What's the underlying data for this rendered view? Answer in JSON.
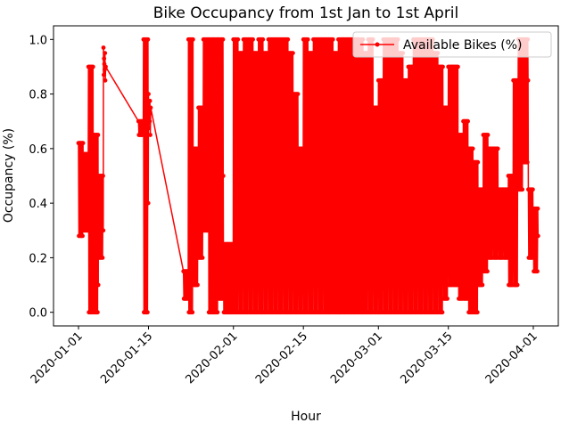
{
  "chart_data": {
    "type": "line",
    "title": "Bike Occupancy from 1st Jan to 1st April",
    "xlabel": "Hour",
    "ylabel": "Occupancy (%)",
    "xlim": [
      "2019-12-27",
      "2020-04-06"
    ],
    "ylim": [
      -0.05,
      1.05
    ],
    "x_ticks": [
      "2020-01-01",
      "2020-01-15",
      "2020-02-01",
      "2020-02-15",
      "2020-03-01",
      "2020-03-15",
      "2020-04-01"
    ],
    "y_ticks": [
      "0.0",
      "0.2",
      "0.4",
      "0.6",
      "0.8",
      "1.0"
    ],
    "grid": false,
    "legend_position": "top-right",
    "series": [
      {
        "name": "Available Bikes (%)",
        "color": "#ff0000",
        "marker": "circle",
        "x": [
          "2020-01-01",
          "2020-01-02",
          "2020-01-03",
          "2020-01-04",
          "2020-01-05",
          "2020-01-06",
          "2020-01-13",
          "2020-01-14",
          "2020-01-15",
          "2020-01-22",
          "2020-01-23",
          "2020-01-24",
          "2020-01-25",
          "2020-01-26",
          "2020-01-27",
          "2020-01-28",
          "2020-01-29",
          "2020-01-30",
          "2020-01-31",
          "2020-02-01",
          "2020-02-02",
          "2020-02-03",
          "2020-02-04",
          "2020-02-05",
          "2020-02-06",
          "2020-02-07",
          "2020-02-08",
          "2020-02-09",
          "2020-02-10",
          "2020-02-11",
          "2020-02-12",
          "2020-02-13",
          "2020-02-14",
          "2020-02-15",
          "2020-02-16",
          "2020-02-17",
          "2020-02-18",
          "2020-02-19",
          "2020-02-20",
          "2020-02-21",
          "2020-02-22",
          "2020-02-23",
          "2020-02-24",
          "2020-02-25",
          "2020-02-26",
          "2020-02-27",
          "2020-02-28",
          "2020-02-29",
          "2020-03-01",
          "2020-03-02",
          "2020-03-03",
          "2020-03-04",
          "2020-03-05",
          "2020-03-06",
          "2020-03-07",
          "2020-03-08",
          "2020-03-09",
          "2020-03-10",
          "2020-03-11",
          "2020-03-12",
          "2020-03-13",
          "2020-03-14",
          "2020-03-15",
          "2020-03-16",
          "2020-03-17",
          "2020-03-18",
          "2020-03-19",
          "2020-03-20",
          "2020-03-21",
          "2020-03-22",
          "2020-03-23",
          "2020-03-24",
          "2020-03-25",
          "2020-03-26",
          "2020-03-27",
          "2020-03-28",
          "2020-03-29",
          "2020-03-30",
          "2020-03-31",
          "2020-04-01"
        ],
        "min": [
          0.28,
          0.3,
          0.0,
          0.0,
          0.2,
          0.85,
          0.65,
          0.0,
          0.65,
          0.05,
          0.0,
          0.1,
          0.2,
          0.3,
          0.0,
          0.0,
          0.05,
          0.0,
          0.0,
          0.0,
          0.0,
          0.0,
          0.0,
          0.0,
          0.0,
          0.0,
          0.0,
          0.0,
          0.0,
          0.0,
          0.0,
          0.0,
          0.0,
          0.0,
          0.0,
          0.0,
          0.0,
          0.0,
          0.0,
          0.0,
          0.0,
          0.0,
          0.0,
          0.0,
          0.0,
          0.0,
          0.0,
          0.0,
          0.0,
          0.0,
          0.0,
          0.0,
          0.0,
          0.0,
          0.0,
          0.0,
          0.0,
          0.0,
          0.0,
          0.0,
          0.0,
          0.05,
          0.1,
          0.1,
          0.05,
          0.05,
          0.0,
          0.0,
          0.1,
          0.15,
          0.2,
          0.2,
          0.2,
          0.2,
          0.1,
          0.1,
          0.45,
          0.55,
          0.2,
          0.15
        ],
        "max": [
          0.62,
          0.58,
          0.9,
          0.65,
          0.5,
          0.97,
          0.7,
          1.0,
          0.8,
          0.15,
          1.0,
          0.6,
          0.75,
          1.0,
          1.0,
          1.0,
          1.0,
          0.25,
          0.25,
          1.0,
          0.95,
          1.0,
          1.0,
          0.95,
          1.0,
          0.95,
          1.0,
          1.0,
          1.0,
          1.0,
          0.95,
          0.8,
          0.6,
          1.0,
          0.95,
          1.0,
          1.0,
          1.0,
          1.0,
          0.95,
          1.0,
          1.0,
          1.0,
          1.0,
          1.0,
          0.95,
          1.0,
          0.75,
          0.85,
          1.0,
          1.0,
          1.0,
          0.95,
          0.85,
          0.9,
          1.0,
          1.0,
          1.0,
          1.0,
          0.95,
          0.9,
          0.75,
          0.9,
          0.9,
          0.65,
          0.7,
          0.6,
          0.55,
          0.45,
          0.65,
          0.6,
          0.6,
          0.45,
          0.45,
          0.5,
          0.85,
          1.0,
          1.0,
          0.45,
          0.38
        ],
        "end": [
          0.45,
          0.5,
          0.05,
          0.1,
          0.3,
          0.9,
          0.66,
          0.4,
          0.75,
          0.1,
          0.3,
          0.2,
          0.6,
          0.9,
          0.2,
          0.8,
          0.5,
          0.2,
          0.1,
          0.5,
          0.6,
          0.4,
          0.7,
          0.3,
          0.8,
          0.5,
          0.4,
          0.9,
          0.2,
          0.6,
          0.5,
          0.4,
          0.3,
          0.7,
          0.5,
          0.8,
          0.3,
          0.6,
          0.5,
          0.4,
          0.7,
          0.3,
          0.8,
          0.5,
          0.6,
          0.4,
          0.5,
          0.3,
          0.6,
          0.7,
          0.5,
          0.8,
          0.4,
          0.6,
          0.5,
          0.7,
          0.8,
          0.6,
          0.5,
          0.4,
          0.6,
          0.3,
          0.5,
          0.4,
          0.3,
          0.4,
          0.3,
          0.2,
          0.25,
          0.4,
          0.3,
          0.35,
          0.3,
          0.25,
          0.3,
          0.8,
          0.9,
          0.85,
          0.3,
          0.28
        ]
      }
    ]
  }
}
